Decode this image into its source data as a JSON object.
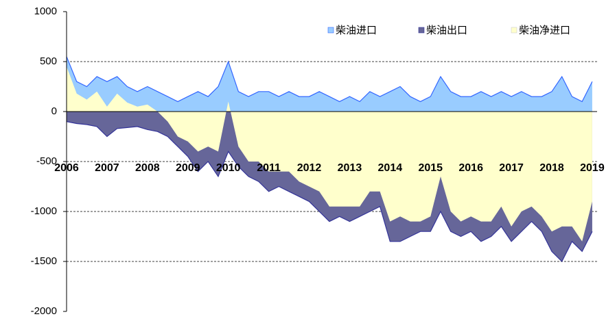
{
  "chart_data": {
    "type": "area",
    "x": [
      2006,
      2006.25,
      2006.5,
      2006.75,
      2007,
      2007.25,
      2007.5,
      2007.75,
      2008,
      2008.25,
      2008.5,
      2008.75,
      2009,
      2009.25,
      2009.5,
      2009.75,
      2010,
      2010.25,
      2010.5,
      2010.75,
      2011,
      2011.25,
      2011.5,
      2011.75,
      2012,
      2012.25,
      2012.5,
      2012.75,
      2013,
      2013.25,
      2013.5,
      2013.75,
      2014,
      2014.25,
      2014.5,
      2014.75,
      2015,
      2015.25,
      2015.5,
      2015.75,
      2016,
      2016.25,
      2016.5,
      2016.75,
      2017,
      2017.25,
      2017.5,
      2017.75,
      2018,
      2018.25,
      2018.5,
      2018.75,
      2019
    ],
    "series": [
      {
        "name": "柴油进口",
        "color": "#99ccff",
        "line_color": "#3366ff",
        "values": [
          550,
          300,
          250,
          350,
          300,
          350,
          250,
          200,
          250,
          200,
          150,
          100,
          150,
          200,
          150,
          250,
          500,
          200,
          150,
          200,
          200,
          150,
          200,
          150,
          150,
          200,
          150,
          100,
          150,
          100,
          200,
          150,
          200,
          250,
          150,
          100,
          150,
          350,
          200,
          150,
          150,
          200,
          150,
          200,
          150,
          200,
          150,
          150,
          200,
          350,
          150,
          100,
          300
        ]
      },
      {
        "name": "柴油出口",
        "color": "#666699",
        "line_color": "#333399",
        "values": [
          -100,
          -120,
          -130,
          -150,
          -250,
          -170,
          -160,
          -150,
          -180,
          -200,
          -250,
          -350,
          -450,
          -600,
          -500,
          -650,
          -400,
          -550,
          -650,
          -700,
          -800,
          -750,
          -800,
          -850,
          -900,
          -1000,
          -1100,
          -1050,
          -1100,
          -1050,
          -1000,
          -950,
          -1300,
          -1300,
          -1250,
          -1200,
          -1200,
          -1000,
          -1200,
          -1250,
          -1200,
          -1300,
          -1250,
          -1150,
          -1300,
          -1200,
          -1100,
          -1200,
          -1400,
          -1500,
          -1300,
          -1400,
          -1200
        ]
      },
      {
        "name": "柴油净进口",
        "color": "#ffffcc",
        "values": [
          450,
          180,
          120,
          200,
          50,
          180,
          90,
          50,
          70,
          0,
          -100,
          -250,
          -300,
          -400,
          -350,
          -400,
          100,
          -350,
          -500,
          -500,
          -600,
          -600,
          -600,
          -700,
          -750,
          -800,
          -950,
          -950,
          -950,
          -950,
          -800,
          -800,
          -1100,
          -1050,
          -1100,
          -1100,
          -1050,
          -650,
          -1000,
          -1100,
          -1050,
          -1100,
          -1100,
          -950,
          -1150,
          -1000,
          -950,
          -1050,
          -1200,
          -1150,
          -1150,
          -1300,
          -900
        ]
      }
    ],
    "xlim": [
      2006,
      2019.12
    ],
    "xticks": [
      2006,
      2007,
      2008,
      2009,
      2010,
      2011,
      2012,
      2013,
      2014,
      2015,
      2016,
      2017,
      2018,
      2019
    ],
    "ylim": [
      -2000,
      1000
    ],
    "yticks": [
      -2000,
      -1500,
      -1000,
      -500,
      0,
      500,
      1000
    ],
    "grid": true,
    "legend": "top-right"
  }
}
